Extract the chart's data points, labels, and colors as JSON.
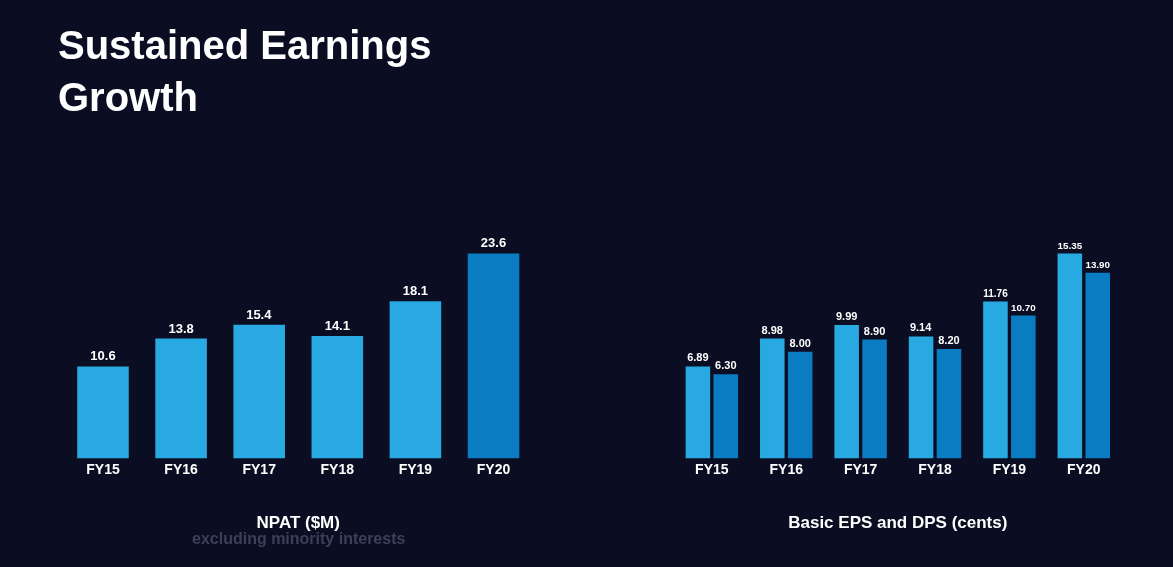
{
  "chart_data": [
    {
      "type": "bar",
      "title": "Sustained Earnings Growth",
      "categories": [
        "FY15",
        "FY16",
        "FY17",
        "FY18",
        "FY19",
        "FY20"
      ],
      "values": [
        10.6,
        13.8,
        15.4,
        14.1,
        18.1,
        23.6
      ],
      "colors": [
        "#29a9e1",
        "#29a9e1",
        "#29a9e1",
        "#29a9e1",
        "#29a9e1",
        "#0a7cc2"
      ],
      "data_labels": true,
      "xlabel": "NPAT ($M)",
      "annotations": [
        "excluding minority interests"
      ]
    },
    {
      "type": "bar",
      "categories": [
        "FY15",
        "FY16",
        "FY17",
        "FY18",
        "FY19",
        "FY20"
      ],
      "series": [
        {
          "color": "#29a9e1",
          "values": [
            6.89,
            8.98,
            9.99,
            9.14,
            11.76,
            15.35
          ],
          "value_labels": [
            "6.89",
            "8.98",
            "9.99",
            "9.14",
            "11.76",
            "15.35"
          ]
        },
        {
          "color": "#0a7cc2",
          "values": [
            6.3,
            8.0,
            8.9,
            8.2,
            10.7,
            13.9
          ],
          "value_labels": [
            "6.30",
            "8.00",
            "8.90",
            "8.20",
            "10.70",
            "13.90"
          ]
        }
      ],
      "xlabel": "Basic EPS and DPS (cents)"
    }
  ]
}
